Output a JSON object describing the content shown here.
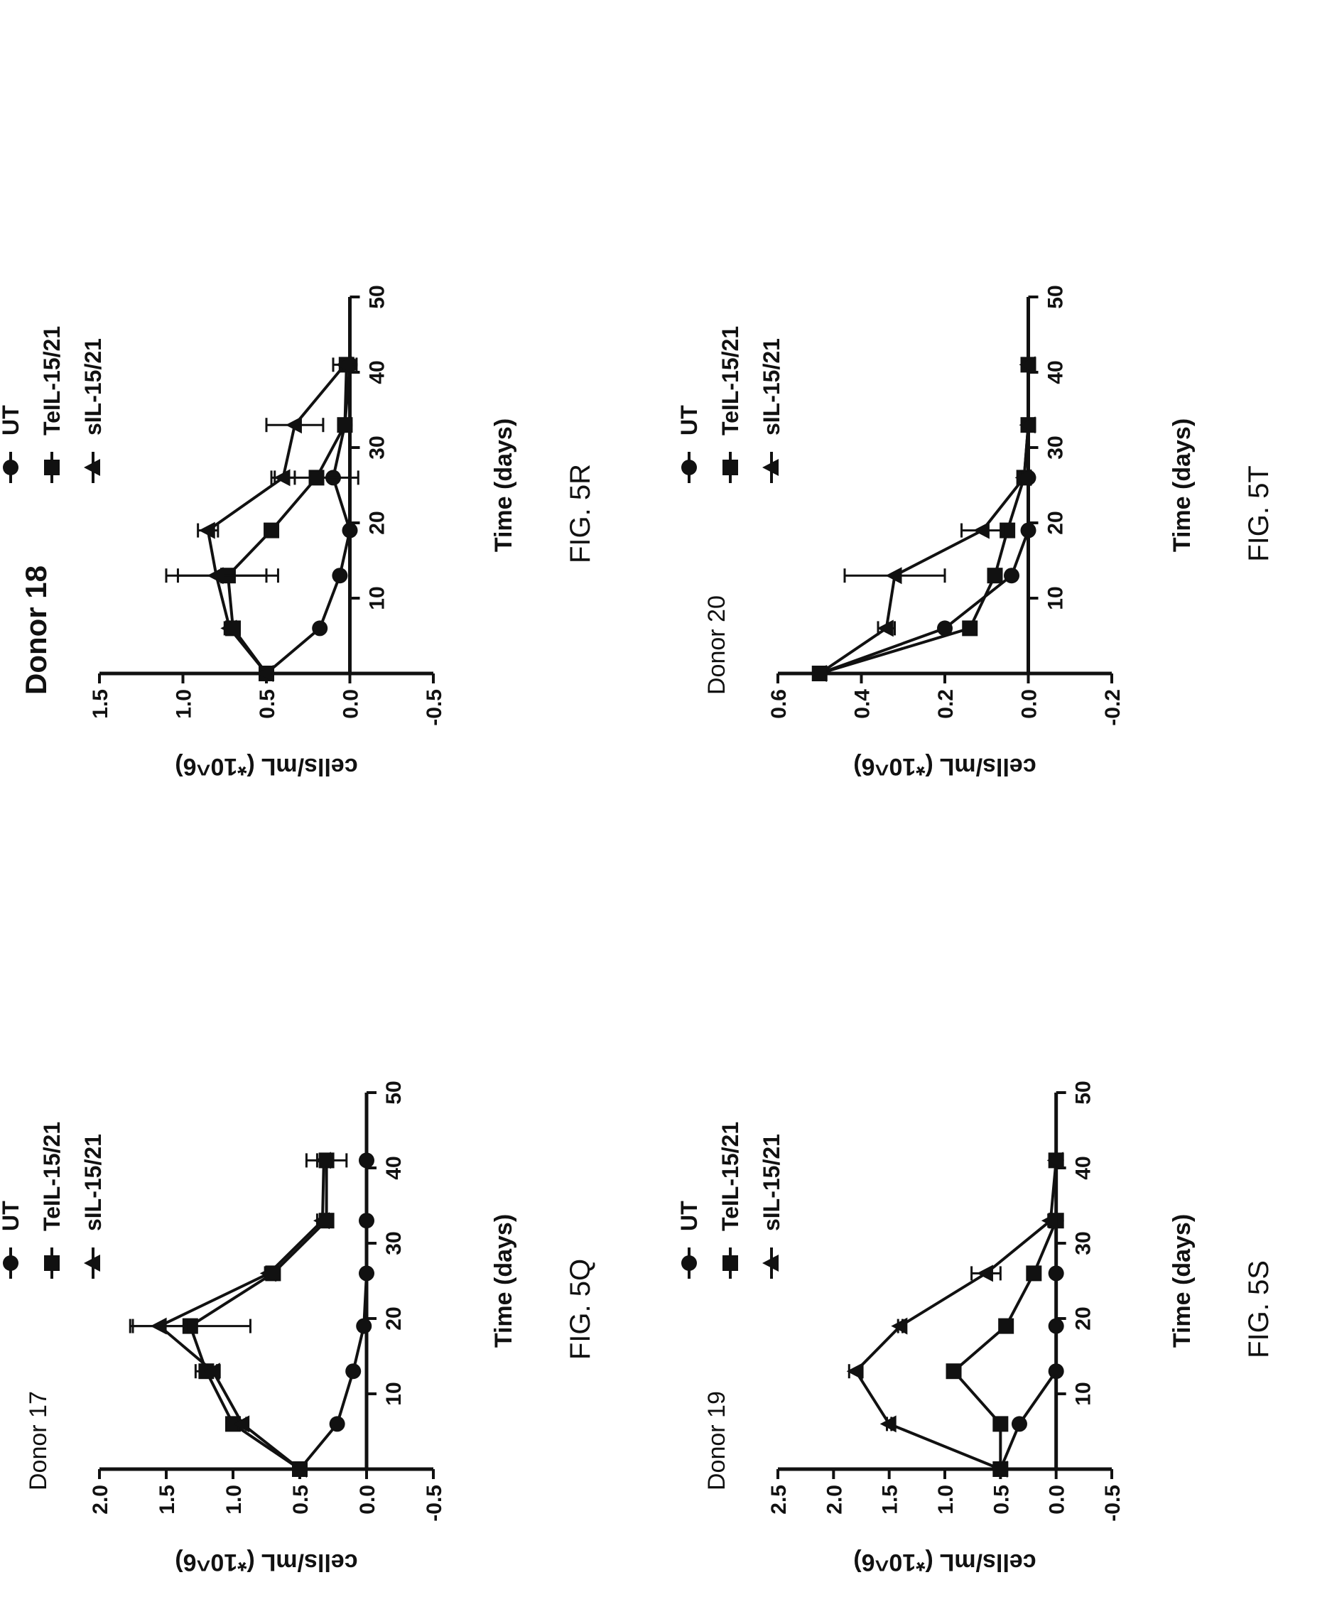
{
  "chart_data": [
    {
      "type": "line",
      "title": "Donor 17",
      "figure_label": "FIG. 5Q",
      "xlabel": "Time (days)",
      "ylabel": "cells/mL (*10^6)",
      "xlim": [
        0,
        50
      ],
      "ylim": [
        -0.5,
        2.0
      ],
      "xticks": [
        10,
        20,
        30,
        40,
        50
      ],
      "yticks": [
        2.0,
        1.5,
        1.0,
        0.5,
        0.0,
        -0.5
      ],
      "series": [
        {
          "name": "UT",
          "marker": "circle",
          "x": [
            0,
            6,
            13,
            19,
            26,
            33,
            41
          ],
          "y": [
            0.5,
            0.22,
            0.1,
            0.02,
            0.0,
            0.0,
            0.0
          ],
          "err": [
            0,
            0,
            0,
            0,
            0,
            0,
            0
          ]
        },
        {
          "name": "TeIL-15/21",
          "marker": "square",
          "x": [
            0,
            6,
            13,
            19,
            26,
            33,
            41
          ],
          "y": [
            0.5,
            1.0,
            1.2,
            1.32,
            0.7,
            0.3,
            0.3
          ],
          "err": [
            0,
            0.03,
            0.08,
            0.45,
            0.03,
            0.02,
            0.15
          ]
        },
        {
          "name": "sIL-15/21",
          "marker": "triangle",
          "x": [
            0,
            6,
            13,
            19,
            26,
            33,
            41
          ],
          "y": [
            0.5,
            0.93,
            1.15,
            1.55,
            0.73,
            0.33,
            0.32
          ],
          "err": [
            0,
            0.03,
            0.05,
            0.2,
            0.03,
            0.04,
            0.05
          ]
        }
      ]
    },
    {
      "type": "line",
      "title": "Donor 18",
      "figure_label": "FIG. 5R",
      "xlabel": "Time (days)",
      "ylabel": "cells/mL (*10^6)",
      "xlim": [
        0,
        50
      ],
      "ylim": [
        -0.5,
        1.5
      ],
      "xticks": [
        10,
        20,
        30,
        40,
        50
      ],
      "yticks": [
        1.5,
        1.0,
        0.5,
        0.0,
        -0.5
      ],
      "series": [
        {
          "name": "UT",
          "marker": "circle",
          "x": [
            0,
            6,
            13,
            19,
            26,
            33,
            41
          ],
          "y": [
            0.5,
            0.18,
            0.06,
            0.0,
            0.1,
            0.03,
            0.0
          ],
          "err": [
            0,
            0,
            0,
            0,
            0,
            0,
            0
          ]
        },
        {
          "name": "TeIL-15/21",
          "marker": "square",
          "x": [
            0,
            6,
            13,
            19,
            26,
            33,
            41
          ],
          "y": [
            0.5,
            0.7,
            0.73,
            0.47,
            0.2,
            0.03,
            0.02
          ],
          "err": [
            0,
            0.03,
            0.3,
            0.03,
            0.25,
            0.03,
            0.02
          ]
        },
        {
          "name": "sIL-15/21",
          "marker": "triangle",
          "x": [
            0,
            6,
            13,
            19,
            26,
            33,
            41
          ],
          "y": [
            0.5,
            0.72,
            0.8,
            0.85,
            0.4,
            0.33,
            0.03
          ],
          "err": [
            0,
            0.03,
            0.3,
            0.06,
            0.07,
            0.17,
            0.07
          ]
        }
      ]
    },
    {
      "type": "line",
      "title": "Donor 19",
      "figure_label": "FIG. 5S",
      "xlabel": "Time (days)",
      "ylabel": "cells/mL (*10^6)",
      "xlim": [
        0,
        50
      ],
      "ylim": [
        -0.5,
        2.5
      ],
      "xticks": [
        10,
        20,
        30,
        40,
        50
      ],
      "yticks": [
        2.5,
        2.0,
        1.5,
        1.0,
        0.5,
        0.0,
        -0.5
      ],
      "series": [
        {
          "name": "UT",
          "marker": "circle",
          "x": [
            0,
            6,
            13,
            19,
            26,
            33,
            41
          ],
          "y": [
            0.5,
            0.33,
            0.0,
            0.0,
            0.0,
            0.0,
            0.0
          ],
          "err": [
            0,
            0,
            0,
            0,
            0,
            0,
            0
          ]
        },
        {
          "name": "TeIL-15/21",
          "marker": "square",
          "x": [
            0,
            6,
            13,
            19,
            26,
            33,
            41
          ],
          "y": [
            0.5,
            0.5,
            0.92,
            0.45,
            0.2,
            0.0,
            0.0
          ],
          "err": [
            0,
            0.02,
            0.02,
            0.02,
            0.02,
            0.02,
            0.02
          ]
        },
        {
          "name": "sIL-15/21",
          "marker": "triangle",
          "x": [
            0,
            6,
            13,
            19,
            26,
            33,
            41
          ],
          "y": [
            0.5,
            1.5,
            1.8,
            1.4,
            0.63,
            0.05,
            0.0
          ],
          "err": [
            0,
            0.02,
            0.06,
            0.02,
            0.13,
            0.02,
            0.02
          ]
        }
      ]
    },
    {
      "type": "line",
      "title": "Donor 20",
      "figure_label": "FIG. 5T",
      "xlabel": "Time (days)",
      "ylabel": "cells/mL (*10^6)",
      "xlim": [
        0,
        50
      ],
      "ylim": [
        -0.2,
        0.6
      ],
      "xticks": [
        10,
        20,
        30,
        40,
        50
      ],
      "yticks": [
        0.6,
        0.4,
        0.2,
        0.0,
        -0.2
      ],
      "series": [
        {
          "name": "UT",
          "marker": "circle",
          "x": [
            0,
            6,
            13,
            19,
            26,
            33,
            41
          ],
          "y": [
            0.5,
            0.2,
            0.04,
            0.0,
            0.0,
            0.0,
            0.0
          ],
          "err": [
            0,
            0,
            0,
            0,
            0,
            0,
            0
          ]
        },
        {
          "name": "TeIL-15/21",
          "marker": "square",
          "x": [
            0,
            6,
            13,
            19,
            26,
            33,
            41
          ],
          "y": [
            0.5,
            0.14,
            0.08,
            0.05,
            0.01,
            0.0,
            0.0
          ],
          "err": [
            0,
            0.01,
            0.01,
            0.01,
            0.01,
            0.01,
            0.01
          ]
        },
        {
          "name": "sIL-15/21",
          "marker": "triangle",
          "x": [
            0,
            6,
            13,
            19,
            26,
            33,
            41
          ],
          "y": [
            0.5,
            0.34,
            0.32,
            0.11,
            0.01,
            0.0,
            0.0
          ],
          "err": [
            0,
            0.02,
            0.12,
            0.05,
            0.01,
            0.0,
            0.0
          ]
        }
      ]
    }
  ],
  "ylabel_display": "cells/mL (*10^6)",
  "colors": {
    "ink": "#111111",
    "background": "#ffffff"
  }
}
